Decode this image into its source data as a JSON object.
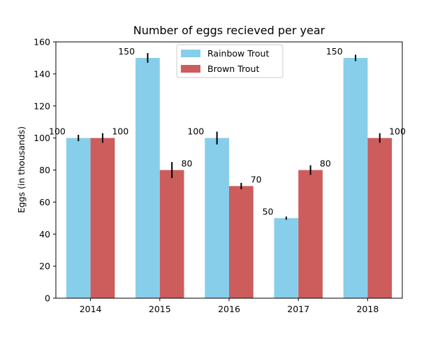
{
  "chart_data": {
    "type": "bar",
    "title": "Number of eggs recieved per year",
    "xlabel": "",
    "ylabel": "Eggs (in thousands)",
    "categories": [
      "2014",
      "2015",
      "2016",
      "2017",
      "2018"
    ],
    "ylim": [
      0,
      160
    ],
    "yticks": [
      0,
      20,
      40,
      60,
      80,
      100,
      120,
      140,
      160
    ],
    "grid": false,
    "legend_position": "top-center",
    "series": [
      {
        "name": "Rainbow Trout",
        "color": "#87ceeb",
        "values": [
          100,
          150,
          100,
          50,
          150
        ],
        "errors": [
          2,
          3,
          4,
          1,
          2
        ],
        "value_labels": [
          "100",
          "150",
          "100",
          "50",
          "150"
        ]
      },
      {
        "name": "Brown Trout",
        "color": "#cd5c5c",
        "values": [
          100,
          80,
          70,
          80,
          100
        ],
        "errors": [
          3,
          5,
          2,
          3,
          3
        ],
        "value_labels": [
          "100",
          "80",
          "70",
          "80",
          "100"
        ]
      }
    ]
  }
}
